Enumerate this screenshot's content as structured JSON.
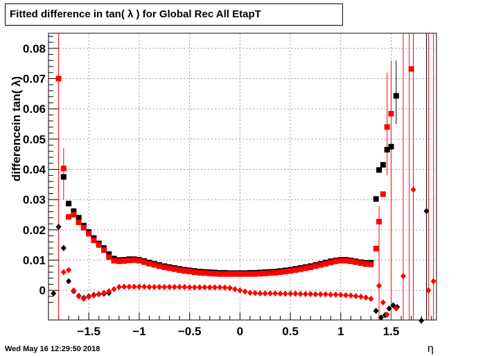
{
  "chart_data": {
    "type": "scatter",
    "title": "Fitted difference in tan( λ ) for Global Rec All EtapT",
    "ylabel": "differencein tan( λ)",
    "xlabel": "η",
    "xlim": [
      -1.9,
      1.95
    ],
    "ylim": [
      -0.0098,
      0.085
    ],
    "grid": true,
    "x_ticks": [
      -1.5,
      -1,
      -0.5,
      0,
      0.5,
      1,
      1.5
    ],
    "x_tick_labels": [
      "−1.5",
      "−1",
      "−0.5",
      "0",
      "0.5",
      "1",
      "1.5"
    ],
    "y_ticks": [
      0,
      0.01,
      0.02,
      0.03,
      0.04,
      0.05,
      0.06,
      0.07,
      0.08
    ],
    "y_tick_labels": [
      "0",
      "0.01",
      "0.02",
      "0.03",
      "0.04",
      "0.05",
      "0.06",
      "0.07",
      "0.08"
    ],
    "series": [
      {
        "marker": "square",
        "color": "#000000",
        "points": [
          [
            -1.75,
            0.0375
          ],
          [
            -1.7,
            0.0287
          ],
          [
            -1.65,
            0.0262
          ],
          [
            -1.6,
            0.024
          ],
          [
            -1.55,
            0.0214
          ],
          [
            -1.5,
            0.0193
          ],
          [
            -1.45,
            0.0173
          ],
          [
            -1.4,
            0.0155
          ],
          [
            -1.35,
            0.014
          ],
          [
            -1.3,
            0.012
          ],
          [
            -1.25,
            0.0105
          ],
          [
            -1.2,
            0.01
          ],
          [
            -1.15,
            0.0101
          ],
          [
            -1.1,
            0.0103
          ],
          [
            -1.05,
            0.0103
          ],
          [
            -1.0,
            0.0101
          ],
          [
            -0.95,
            0.0097
          ],
          [
            -0.9,
            0.0092
          ],
          [
            -0.85,
            0.0088
          ],
          [
            -0.8,
            0.0084
          ],
          [
            -0.75,
            0.008
          ],
          [
            -0.7,
            0.0077
          ],
          [
            -0.65,
            0.0074
          ],
          [
            -0.6,
            0.0071
          ],
          [
            -0.55,
            0.0068
          ],
          [
            -0.5,
            0.0066
          ],
          [
            -0.45,
            0.0064
          ],
          [
            -0.4,
            0.0062
          ],
          [
            -0.35,
            0.0061
          ],
          [
            -0.3,
            0.006
          ],
          [
            -0.25,
            0.0059
          ],
          [
            -0.2,
            0.0058
          ],
          [
            -0.15,
            0.0058
          ],
          [
            -0.1,
            0.0057
          ],
          [
            -0.05,
            0.0057
          ],
          [
            0.0,
            0.0057
          ],
          [
            0.05,
            0.0057
          ],
          [
            0.1,
            0.0058
          ],
          [
            0.15,
            0.0058
          ],
          [
            0.2,
            0.0059
          ],
          [
            0.25,
            0.006
          ],
          [
            0.3,
            0.0061
          ],
          [
            0.35,
            0.0062
          ],
          [
            0.4,
            0.0064
          ],
          [
            0.45,
            0.0066
          ],
          [
            0.5,
            0.0068
          ],
          [
            0.55,
            0.0071
          ],
          [
            0.6,
            0.0074
          ],
          [
            0.65,
            0.0077
          ],
          [
            0.7,
            0.008
          ],
          [
            0.75,
            0.0084
          ],
          [
            0.8,
            0.0088
          ],
          [
            0.85,
            0.0092
          ],
          [
            0.9,
            0.0096
          ],
          [
            0.95,
            0.0099
          ],
          [
            1.0,
            0.0101
          ],
          [
            1.05,
            0.0101
          ],
          [
            1.1,
            0.0099
          ],
          [
            1.15,
            0.0096
          ],
          [
            1.2,
            0.0093
          ],
          [
            1.25,
            0.0091
          ],
          [
            1.3,
            0.0091
          ],
          [
            1.35,
            0.0302
          ],
          [
            1.38,
            0.0398
          ],
          [
            1.42,
            0.0415
          ],
          [
            1.46,
            0.0465
          ],
          [
            1.5,
            0.0475
          ],
          [
            1.55,
            0.0643
          ]
        ]
      },
      {
        "marker": "square",
        "color": "#ff0000",
        "points": [
          [
            -1.8,
            0.07
          ],
          [
            -1.75,
            0.0403
          ],
          [
            -1.7,
            0.0243
          ],
          [
            -1.65,
            0.025
          ],
          [
            -1.6,
            0.0225
          ],
          [
            -1.55,
            0.0207
          ],
          [
            -1.5,
            0.0187
          ],
          [
            -1.45,
            0.0165
          ],
          [
            -1.4,
            0.015
          ],
          [
            -1.35,
            0.0133
          ],
          [
            -1.3,
            0.011
          ],
          [
            -1.25,
            0.0098
          ],
          [
            -1.2,
            0.0096
          ],
          [
            -1.15,
            0.0097
          ],
          [
            -1.1,
            0.0099
          ],
          [
            -1.05,
            0.01
          ],
          [
            -1.0,
            0.0098
          ],
          [
            -0.95,
            0.0093
          ],
          [
            -0.9,
            0.0088
          ],
          [
            -0.85,
            0.0084
          ],
          [
            -0.8,
            0.008
          ],
          [
            -0.75,
            0.0076
          ],
          [
            -0.7,
            0.0073
          ],
          [
            -0.65,
            0.007
          ],
          [
            -0.6,
            0.0067
          ],
          [
            -0.55,
            0.0064
          ],
          [
            -0.5,
            0.0062
          ],
          [
            -0.45,
            0.006
          ],
          [
            -0.4,
            0.0058
          ],
          [
            -0.35,
            0.0057
          ],
          [
            -0.3,
            0.0056
          ],
          [
            -0.25,
            0.0055
          ],
          [
            -0.2,
            0.0054
          ],
          [
            -0.15,
            0.0054
          ],
          [
            -0.1,
            0.0054
          ],
          [
            -0.05,
            0.0054
          ],
          [
            0.0,
            0.0054
          ],
          [
            0.05,
            0.0054
          ],
          [
            0.1,
            0.0054
          ],
          [
            0.15,
            0.0054
          ],
          [
            0.2,
            0.0055
          ],
          [
            0.25,
            0.0056
          ],
          [
            0.3,
            0.0057
          ],
          [
            0.35,
            0.0058
          ],
          [
            0.4,
            0.006
          ],
          [
            0.45,
            0.0062
          ],
          [
            0.5,
            0.0064
          ],
          [
            0.55,
            0.0067
          ],
          [
            0.6,
            0.007
          ],
          [
            0.65,
            0.0073
          ],
          [
            0.7,
            0.0076
          ],
          [
            0.75,
            0.008
          ],
          [
            0.8,
            0.0084
          ],
          [
            0.85,
            0.0088
          ],
          [
            0.9,
            0.0092
          ],
          [
            0.95,
            0.0096
          ],
          [
            1.0,
            0.0098
          ],
          [
            1.05,
            0.0098
          ],
          [
            1.1,
            0.0096
          ],
          [
            1.15,
            0.0093
          ],
          [
            1.2,
            0.009
          ],
          [
            1.25,
            0.0087
          ],
          [
            1.3,
            0.0086
          ],
          [
            1.35,
            0.0138
          ],
          [
            1.38,
            0.0227
          ],
          [
            1.42,
            0.0318
          ],
          [
            1.46,
            0.054
          ],
          [
            1.5,
            0.0584
          ],
          [
            1.7,
            0.0732
          ]
        ]
      },
      {
        "marker": "diamond",
        "color": "#000000",
        "points": [
          [
            -1.85,
            -0.001
          ],
          [
            -1.8,
            0.021
          ],
          [
            -1.75,
            0.014
          ],
          [
            -1.7,
            0.003
          ],
          [
            -1.65,
            -0.0003
          ],
          [
            -1.6,
            -0.0018
          ],
          [
            -1.55,
            -0.0025
          ],
          [
            -1.5,
            -0.002
          ],
          [
            -1.45,
            -0.0015
          ],
          [
            -1.4,
            -0.0013
          ],
          [
            -1.35,
            -0.0011
          ],
          [
            -1.3,
            -0.0009
          ],
          [
            1.35,
            -0.0068
          ],
          [
            1.4,
            -0.009
          ],
          [
            1.44,
            -0.0082
          ],
          [
            1.48,
            -0.006
          ],
          [
            1.52,
            -0.005
          ],
          [
            1.56,
            -0.0055
          ],
          [
            1.8,
            -0.01
          ],
          [
            1.85,
            0.0262
          ]
        ]
      },
      {
        "marker": "diamond",
        "color": "#ff0000",
        "points": [
          [
            -1.75,
            0.006
          ],
          [
            -1.7,
            0.0067
          ],
          [
            -1.65,
            0.0
          ],
          [
            -1.6,
            -0.002
          ],
          [
            -1.55,
            -0.0028
          ],
          [
            -1.5,
            -0.0022
          ],
          [
            -1.45,
            -0.0017
          ],
          [
            -1.4,
            -0.0012
          ],
          [
            -1.35,
            -0.0008
          ],
          [
            -1.3,
            -0.0003
          ],
          [
            -1.25,
            0.0004
          ],
          [
            -1.2,
            0.0011
          ],
          [
            -1.15,
            0.0012
          ],
          [
            -1.1,
            0.0012
          ],
          [
            -1.05,
            0.0012
          ],
          [
            -1.0,
            0.0012
          ],
          [
            -0.95,
            0.0012
          ],
          [
            -0.9,
            0.0011
          ],
          [
            -0.85,
            0.0011
          ],
          [
            -0.8,
            0.0011
          ],
          [
            -0.75,
            0.0011
          ],
          [
            -0.7,
            0.0011
          ],
          [
            -0.65,
            0.0011
          ],
          [
            -0.6,
            0.0011
          ],
          [
            -0.55,
            0.0011
          ],
          [
            -0.5,
            0.001
          ],
          [
            -0.45,
            0.001
          ],
          [
            -0.4,
            0.001
          ],
          [
            -0.35,
            0.001
          ],
          [
            -0.3,
            0.001
          ],
          [
            -0.25,
            0.001
          ],
          [
            -0.2,
            0.001
          ],
          [
            -0.15,
            0.0009
          ],
          [
            -0.1,
            0.0008
          ],
          [
            -0.05,
            0.0004
          ],
          [
            0.0,
            0.0
          ],
          [
            0.05,
            -0.0004
          ],
          [
            0.1,
            -0.0008
          ],
          [
            0.15,
            -0.0009
          ],
          [
            0.2,
            -0.001
          ],
          [
            0.25,
            -0.001
          ],
          [
            0.3,
            -0.001
          ],
          [
            0.35,
            -0.001
          ],
          [
            0.4,
            -0.0011
          ],
          [
            0.45,
            -0.0011
          ],
          [
            0.5,
            -0.0011
          ],
          [
            0.55,
            -0.0011
          ],
          [
            0.6,
            -0.0012
          ],
          [
            0.65,
            -0.0012
          ],
          [
            0.7,
            -0.0012
          ],
          [
            0.75,
            -0.0013
          ],
          [
            0.8,
            -0.0013
          ],
          [
            0.85,
            -0.0013
          ],
          [
            0.9,
            -0.0014
          ],
          [
            0.95,
            -0.0014
          ],
          [
            1.0,
            -0.0015
          ],
          [
            1.05,
            -0.0016
          ],
          [
            1.1,
            -0.0017
          ],
          [
            1.15,
            -0.0019
          ],
          [
            1.2,
            -0.0021
          ],
          [
            1.25,
            -0.0024
          ],
          [
            1.3,
            -0.0028
          ],
          [
            1.38,
            0.0015
          ],
          [
            1.42,
            -0.004
          ],
          [
            1.46,
            -0.008
          ],
          [
            1.55,
            -0.006
          ],
          [
            1.62,
            0.0047
          ],
          [
            1.72,
            0.0333
          ],
          [
            1.87,
            0.0
          ],
          [
            1.92,
            0.003
          ]
        ]
      }
    ]
  },
  "header": {
    "title": "Fitted difference in tan( λ ) for Global Rec All EtapT"
  },
  "axes": {
    "ylabel": "differencein tan( λ)",
    "xlabel": "η"
  },
  "footer": {
    "timestamp": "Wed May 16 12:29:50 2018"
  }
}
